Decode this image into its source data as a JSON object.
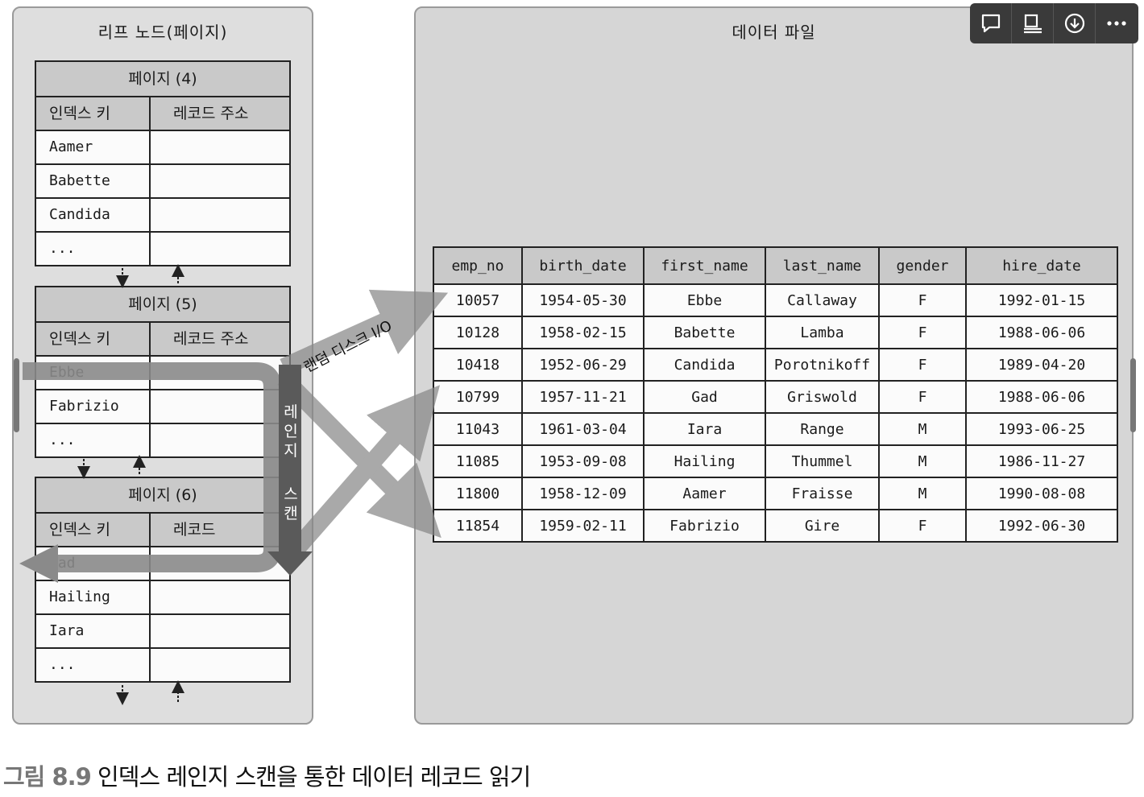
{
  "leaf_panel": {
    "title": "리프 노드(페이지)"
  },
  "data_panel": {
    "title": "데이터 파일"
  },
  "pages": [
    {
      "title": "페이지 (4)",
      "header_key": "인덱스 키",
      "header_addr": "레코드 주소",
      "rows": [
        "Aamer",
        "Babette",
        "Candida",
        "..."
      ]
    },
    {
      "title": "페이지 (5)",
      "header_key": "인덱스 키",
      "header_addr": "레코드 주소",
      "rows": [
        "Ebbe",
        "Fabrizio",
        "..."
      ]
    },
    {
      "title": "페이지 (6)",
      "header_key": "인덱스 키",
      "header_addr": "레코드",
      "rows": [
        "Gad",
        "Hailing",
        "Iara",
        "..."
      ]
    }
  ],
  "data_table": {
    "columns": [
      "emp_no",
      "birth_date",
      "first_name",
      "last_name",
      "gender",
      "hire_date"
    ],
    "rows": [
      [
        "10057",
        "1954-05-30",
        "Ebbe",
        "Callaway",
        "F",
        "1992-01-15"
      ],
      [
        "10128",
        "1958-02-15",
        "Babette",
        "Lamba",
        "F",
        "1988-06-06"
      ],
      [
        "10418",
        "1952-06-29",
        "Candida",
        "Porotnikoff",
        "F",
        "1989-04-20"
      ],
      [
        "10799",
        "1957-11-21",
        "Gad",
        "Griswold",
        "F",
        "1988-06-06"
      ],
      [
        "11043",
        "1961-03-04",
        "Iara",
        "Range",
        "M",
        "1993-06-25"
      ],
      [
        "11085",
        "1953-09-08",
        "Hailing",
        "Thummel",
        "M",
        "1986-11-27"
      ],
      [
        "11800",
        "1958-12-09",
        "Aamer",
        "Fraisse",
        "M",
        "1990-08-08"
      ],
      [
        "11854",
        "1959-02-11",
        "Fabrizio",
        "Gire",
        "F",
        "1992-06-30"
      ]
    ]
  },
  "labels": {
    "range_scan_1": "레인지",
    "range_scan_2": "스캔",
    "random_io": "랜덤 디스크 I/O"
  },
  "caption": {
    "number": "그림 8.9",
    "text": " 인덱스 레인지 스캔을 통한 데이터 레코드 읽기"
  },
  "toolbar": [
    "comment-icon",
    "present-icon",
    "download-icon",
    "more-icon"
  ]
}
